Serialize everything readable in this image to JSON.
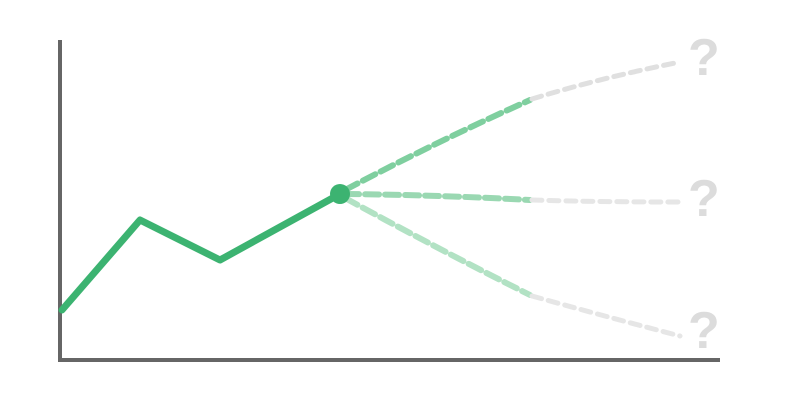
{
  "colors": {
    "axis": "#666666",
    "history": "#3cb371",
    "future_upper": "#7fcf9f",
    "future_middle": "#9ad8b2",
    "future_lower": "#b2e2c4",
    "unknown": "#e0e0e0",
    "question_mark": "#dcdcdc"
  },
  "outcomes": [
    {
      "label": "?"
    },
    {
      "label": "?"
    },
    {
      "label": "?"
    }
  ]
}
